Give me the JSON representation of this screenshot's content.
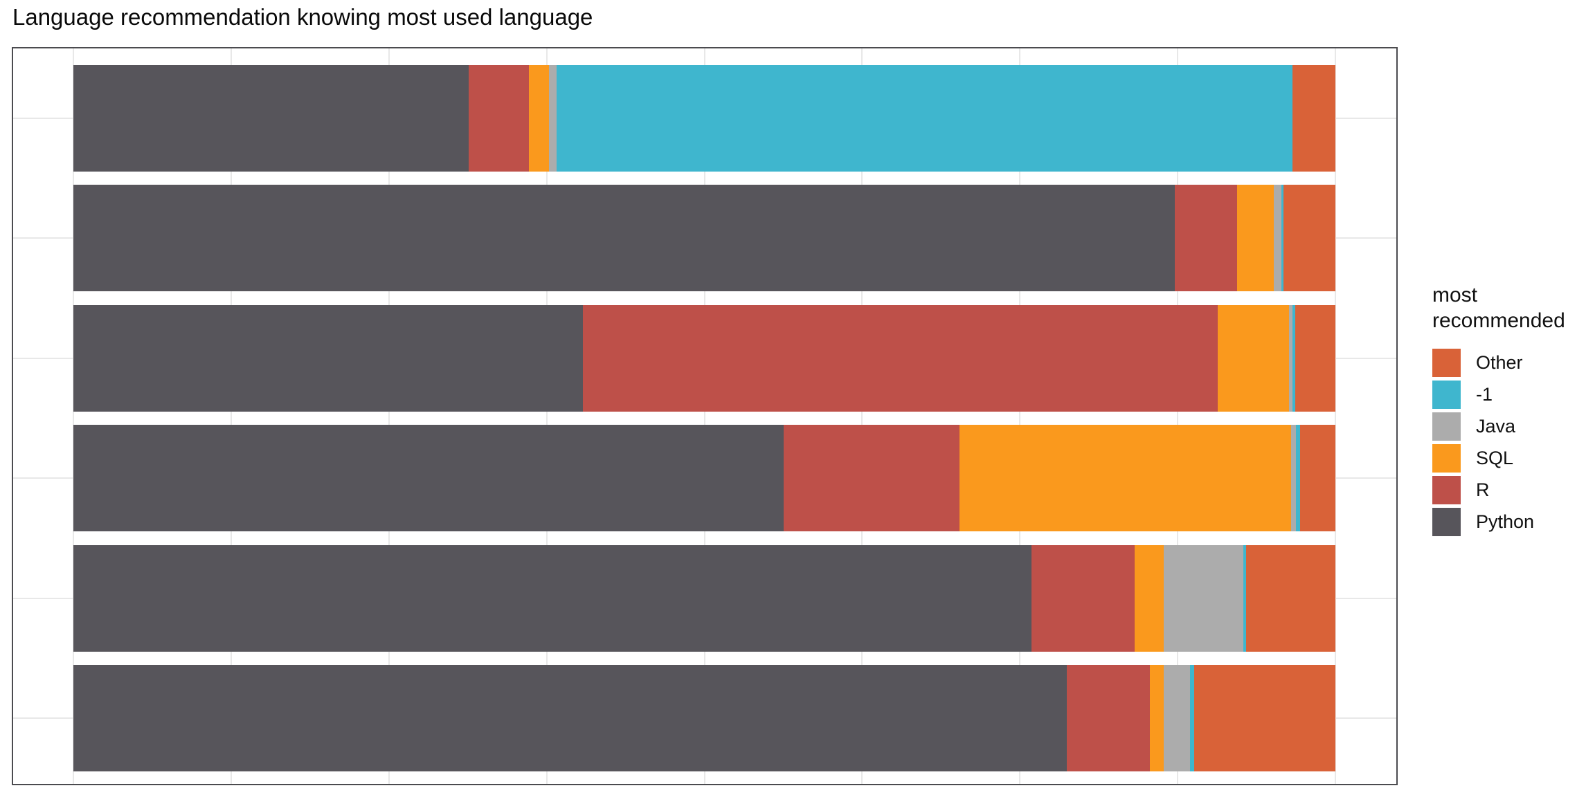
{
  "title": "Language recommendation knowing most used language",
  "colors": {
    "Python": "#57555b",
    "R": "#be5049",
    "SQL": "#fa991d",
    "Java": "#acacac",
    "-1": "#3fb6ce",
    "Other": "#d96238"
  },
  "legend": {
    "title_lines": [
      "most",
      "recommended"
    ],
    "entries": [
      {
        "label": "Other",
        "series": "Other",
        "slug": "other"
      },
      {
        "label": "-1",
        "series": "-1",
        "slug": "neg1"
      },
      {
        "label": "Java",
        "series": "Java",
        "slug": "java"
      },
      {
        "label": "SQL",
        "series": "SQL",
        "slug": "sql"
      },
      {
        "label": "R",
        "series": "R",
        "slug": "r"
      },
      {
        "label": "Python",
        "series": "Python",
        "slug": "python"
      }
    ]
  },
  "chart_data": {
    "type": "bar",
    "variant": "horizontal_stacked_100pct",
    "title": "Language recommendation knowing most used language",
    "xlabel": "",
    "ylabel": "",
    "x_axis": {
      "range_pct": [
        0,
        100
      ],
      "gridlines_pct": [
        0,
        12.5,
        25,
        37.5,
        50,
        62.5,
        75,
        87.5,
        100
      ],
      "tick_labels_visible": false
    },
    "y_axis": {
      "categories": [
        "",
        "",
        "",
        "",
        "",
        ""
      ],
      "tick_labels_visible": false,
      "gridlines_at_row_centers": true
    },
    "legend_position": "right",
    "stack_order_left_to_right": [
      "Python",
      "R",
      "SQL",
      "Java",
      "-1",
      "Other"
    ],
    "series": [
      {
        "name": "Python",
        "slug": "python",
        "values": [
          31.3,
          87.3,
          40.4,
          56.3,
          75.9,
          78.7
        ]
      },
      {
        "name": "R",
        "slug": "r",
        "values": [
          4.8,
          4.9,
          50.3,
          13.9,
          8.2,
          6.6
        ]
      },
      {
        "name": "SQL",
        "slug": "sql",
        "values": [
          1.6,
          2.9,
          5.6,
          26.3,
          2.3,
          1.1
        ]
      },
      {
        "name": "Java",
        "slug": "java",
        "values": [
          0.6,
          0.6,
          0.3,
          0.4,
          6.3,
          2.1
        ]
      },
      {
        "name": "-1",
        "slug": "neg1",
        "values": [
          58.3,
          0.2,
          0.2,
          0.3,
          0.2,
          0.3
        ]
      },
      {
        "name": "Other",
        "slug": "other",
        "values": [
          3.4,
          4.1,
          3.2,
          2.8,
          7.1,
          11.2
        ]
      }
    ]
  }
}
